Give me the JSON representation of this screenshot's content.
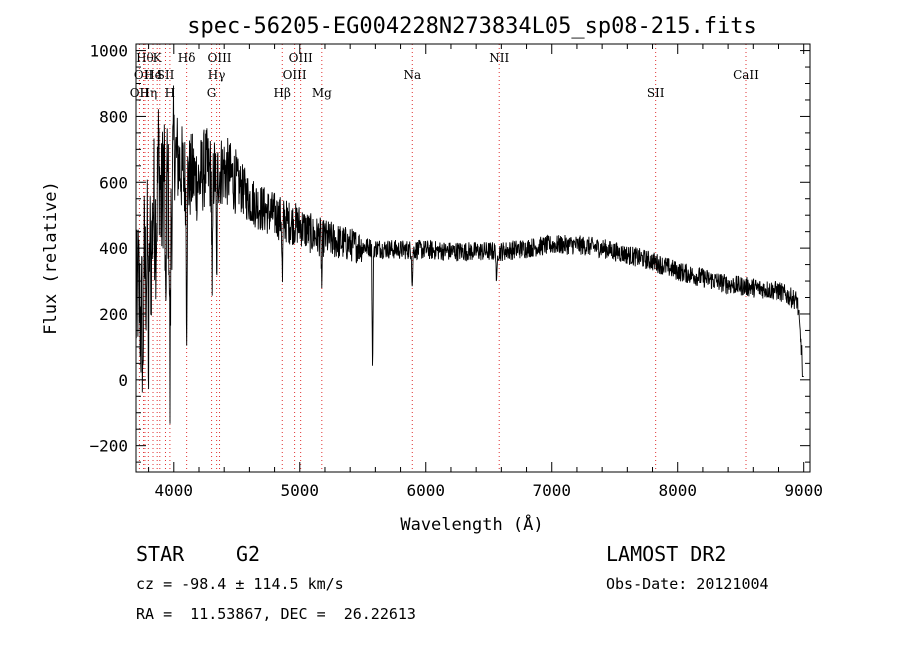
{
  "chart_data": {
    "type": "line",
    "title": "spec-56205-EG004228N273834L05_sp08-215.fits",
    "xlabel": "Wavelength (Å)",
    "ylabel": "Flux (relative)",
    "xlim": [
      3700,
      9050
    ],
    "ylim": [
      -280,
      1020
    ],
    "x_ticks": [
      4000,
      5000,
      6000,
      7000,
      8000,
      9000
    ],
    "y_ticks": [
      -200,
      0,
      200,
      400,
      600,
      800,
      1000
    ],
    "grid": false,
    "spectrum_knots": [
      [
        3700,
        200
      ],
      [
        3720,
        300
      ],
      [
        3740,
        150
      ],
      [
        3760,
        400
      ],
      [
        3780,
        300
      ],
      [
        3800,
        500
      ],
      [
        3820,
        350
      ],
      [
        3840,
        550
      ],
      [
        3860,
        450
      ],
      [
        3880,
        700
      ],
      [
        3900,
        500
      ],
      [
        3920,
        650
      ],
      [
        3950,
        600
      ],
      [
        3970,
        400
      ],
      [
        4000,
        700
      ],
      [
        4050,
        650
      ],
      [
        4100,
        600
      ],
      [
        4150,
        620
      ],
      [
        4200,
        600
      ],
      [
        4250,
        650
      ],
      [
        4300,
        620
      ],
      [
        4400,
        640
      ],
      [
        4500,
        600
      ],
      [
        4600,
        550
      ],
      [
        4700,
        520
      ],
      [
        4800,
        500
      ],
      [
        4900,
        480
      ],
      [
        5000,
        470
      ],
      [
        5100,
        440
      ],
      [
        5200,
        430
      ],
      [
        5400,
        410
      ],
      [
        5600,
        400
      ],
      [
        5800,
        395
      ],
      [
        6000,
        395
      ],
      [
        6200,
        390
      ],
      [
        6400,
        390
      ],
      [
        6600,
        390
      ],
      [
        6800,
        400
      ],
      [
        7000,
        410
      ],
      [
        7200,
        410
      ],
      [
        7400,
        400
      ],
      [
        7600,
        380
      ],
      [
        7800,
        360
      ],
      [
        8000,
        330
      ],
      [
        8200,
        310
      ],
      [
        8400,
        290
      ],
      [
        8600,
        280
      ],
      [
        8800,
        270
      ],
      [
        8950,
        240
      ],
      [
        9000,
        10
      ]
    ],
    "absorption_lines": [
      {
        "x": 3755,
        "depth": 380
      },
      {
        "x": 3800,
        "depth": 500
      },
      {
        "x": 3935,
        "depth": 550
      },
      {
        "x": 3970,
        "depth": 450
      },
      {
        "x": 4102,
        "depth": 420
      },
      {
        "x": 4305,
        "depth": 420
      },
      {
        "x": 4340,
        "depth": 350
      },
      {
        "x": 4862,
        "depth": 200
      },
      {
        "x": 5175,
        "depth": 150
      },
      {
        "x": 5578,
        "depth": 400
      },
      {
        "x": 5893,
        "depth": 120
      },
      {
        "x": 6563,
        "depth": 120
      }
    ],
    "line_markers": [
      {
        "x": 3727,
        "label": "OII",
        "row": 2
      },
      {
        "x": 3760,
        "label": "OII",
        "row": 1
      },
      {
        "x": 3771,
        "label": "Hθ",
        "row": 0
      },
      {
        "x": 3798,
        "label": "Hη",
        "row": 2
      },
      {
        "x": 3835,
        "label": "He",
        "row": 1
      },
      {
        "x": 3868,
        "label": "K",
        "row": 0
      },
      {
        "x": 3889,
        "label": "I",
        "row": 1
      },
      {
        "x": 3934,
        "label": "SII",
        "row": 1
      },
      {
        "x": 3969,
        "label": "H",
        "row": 2
      },
      {
        "x": 4102,
        "label": "Hδ",
        "row": 0
      },
      {
        "x": 4300,
        "label": "G",
        "row": 2
      },
      {
        "x": 4340,
        "label": "Hγ",
        "row": 1
      },
      {
        "x": 4363,
        "label": "OIII",
        "row": 0
      },
      {
        "x": 4861,
        "label": "Hβ",
        "row": 2
      },
      {
        "x": 4959,
        "label": "OIII",
        "row": 1
      },
      {
        "x": 5007,
        "label": "OIII",
        "row": 0
      },
      {
        "x": 5175,
        "label": "Mg",
        "row": 2
      },
      {
        "x": 5893,
        "label": "Na",
        "row": 1
      },
      {
        "x": 6583,
        "label": "NII",
        "row": 0
      },
      {
        "x": 7825,
        "label": "SII",
        "row": 2
      },
      {
        "x": 8542,
        "label": "CaII",
        "row": 1
      }
    ],
    "marker_color": "#e03030",
    "spectrum_color": "#000000"
  },
  "info": {
    "class": "STAR",
    "subclass": "G2",
    "cz": "cz = -98.4 ± 114.5 km/s",
    "coords": "RA =  11.53867, DEC =  26.22613",
    "survey": "LAMOST DR2",
    "obsdate": "Obs-Date: 20121004"
  }
}
